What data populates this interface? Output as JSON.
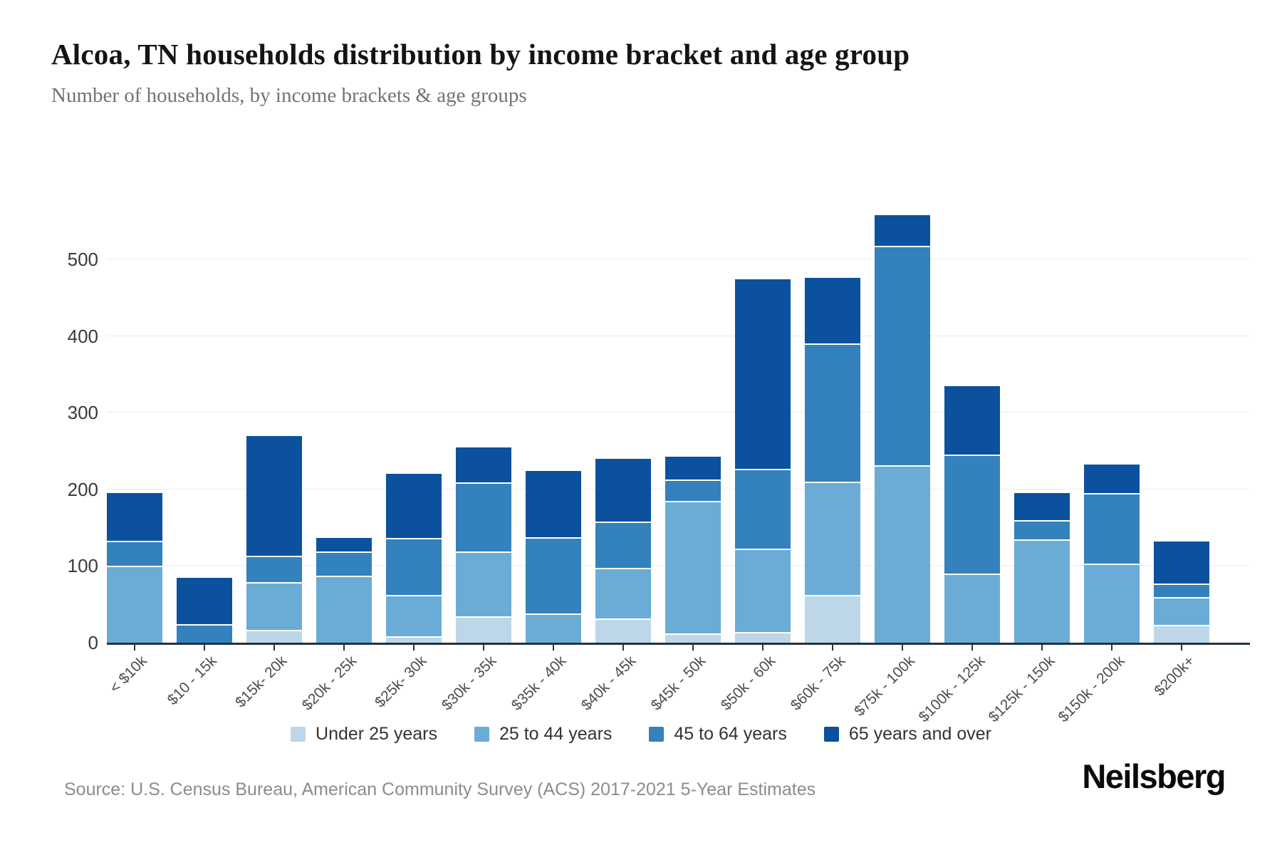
{
  "title": "Alcoa, TN households distribution by income bracket and age group",
  "subtitle": "Number of households, by income brackets & age groups",
  "source": "Source: U.S. Census Bureau, American Community Survey (ACS) 2017-2021 5-Year Estimates",
  "brand": "Neilsberg",
  "chart_data": {
    "type": "bar",
    "stacked": true,
    "title": "Alcoa, TN households distribution by income bracket and age group",
    "subtitle": "Number of households, by income brackets & age groups",
    "xlabel": "",
    "ylabel": "",
    "ylim": [
      0,
      600
    ],
    "yticks": [
      0,
      100,
      200,
      300,
      400,
      500
    ],
    "grid": true,
    "legend_position": "bottom",
    "categories": [
      "< $10k",
      "$10 - 15k",
      "$15k- 20k",
      "$20k - 25k",
      "$25k- 30k",
      "$30k - 35k",
      "$35k - 40k",
      "$40k - 45k",
      "$45k - 50k",
      "$50k - 60k",
      "$60k - 75k",
      "$75k - 100k",
      "$100k - 125k",
      "$125k - 150k",
      "$150k - 200k",
      "$200k+"
    ],
    "series": [
      {
        "name": "Under 25 years",
        "color": "#bdd7e8",
        "values": [
          0,
          0,
          17,
          0,
          8,
          34,
          0,
          32,
          12,
          14,
          62,
          0,
          0,
          0,
          0,
          23
        ]
      },
      {
        "name": "25 to 44 years",
        "color": "#6aacd6",
        "values": [
          100,
          0,
          62,
          87,
          54,
          85,
          38,
          66,
          173,
          109,
          148,
          231,
          90,
          135,
          103,
          37
        ]
      },
      {
        "name": "45 to 64 years",
        "color": "#3381bd",
        "values": [
          33,
          24,
          34,
          32,
          75,
          90,
          100,
          60,
          28,
          104,
          180,
          287,
          155,
          25,
          92,
          17
        ]
      },
      {
        "name": "65 years and over",
        "color": "#0b519e",
        "values": [
          62,
          61,
          157,
          18,
          83,
          46,
          86,
          82,
          30,
          247,
          86,
          40,
          90,
          35,
          37,
          55
        ]
      }
    ],
    "totals": [
      195,
      85,
      270,
      137,
      220,
      255,
      224,
      240,
      243,
      474,
      476,
      558,
      335,
      195,
      232,
      132
    ]
  }
}
